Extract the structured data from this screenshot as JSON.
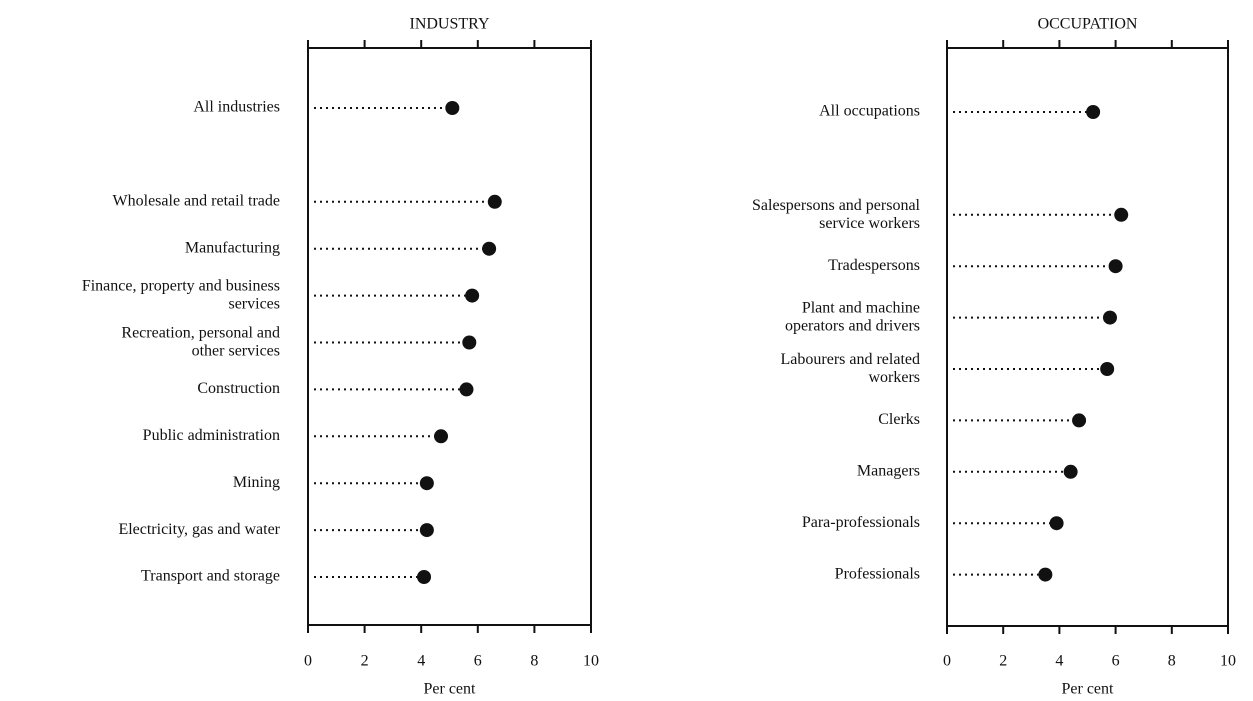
{
  "chart_data": [
    {
      "type": "dot",
      "title": "INDUSTRY",
      "x_label": "Per cent",
      "categories": [
        "All industries",
        null,
        "Wholesale and retail trade",
        "Manufacturing",
        "Finance, property and business\nservices",
        "Recreation, personal and\nother services",
        "Construction",
        "Public administration",
        "Mining",
        "Electricity, gas and water",
        "Transport and storage"
      ],
      "values": [
        5.1,
        null,
        6.6,
        6.4,
        5.8,
        5.7,
        5.6,
        4.7,
        4.2,
        4.2,
        4.1
      ],
      "color": "#111111",
      "xlim": [
        0,
        10
      ],
      "xticks": [
        0,
        2,
        4,
        6,
        8,
        10
      ]
    },
    {
      "type": "dot",
      "title": "OCCUPATION",
      "x_label": "Per cent",
      "categories": [
        "All occupations",
        null,
        "Salespersons and personal\nservice workers",
        "Tradespersons",
        "Plant and machine\noperators and drivers",
        "Labourers and related\nworkers",
        "Clerks",
        "Managers",
        "Para-professionals",
        "Professionals"
      ],
      "values": [
        5.2,
        null,
        6.2,
        6.0,
        5.8,
        5.7,
        4.7,
        4.4,
        3.9,
        3.5
      ],
      "color": "#111111",
      "xlim": [
        0,
        10
      ],
      "xticks": [
        0,
        2,
        4,
        6,
        8,
        10
      ]
    }
  ]
}
